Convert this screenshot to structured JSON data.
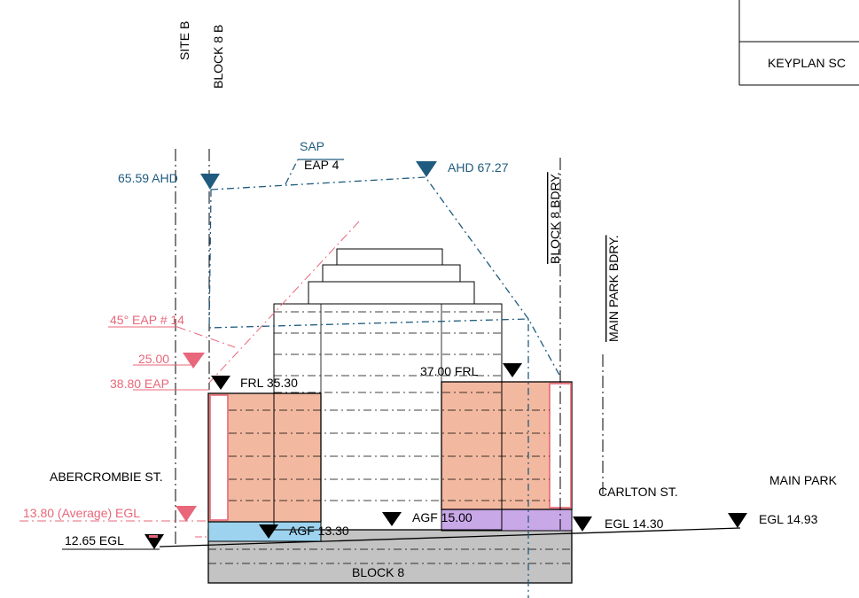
{
  "colors": {
    "ink": "#000000",
    "pink": "#e8677a",
    "dark_blue": "#1f5b7f",
    "orange_fill": "#f3b9a0",
    "blue_fill": "#9dd3ef",
    "purple_fill": "#c9a8e8",
    "grey_fill": "#c3c3c3"
  },
  "keyplan": {
    "label": "KEYPLAN SC"
  },
  "labels": {
    "site_b": "SITE B",
    "block_8_top": "BLOCK 8 B",
    "block_8_bdry": "BLOCK 8 BDRY.",
    "main_park_bdry": "MAIN PARK BDRY.",
    "abercrombie": "ABERCROMBIE ST.",
    "carlton": "CARLTON ST.",
    "main_park": "MAIN PARK",
    "block_8": "BLOCK 8"
  },
  "levels": {
    "ahd_left": "65.59 AHD",
    "ahd_right": "AHD 67.27",
    "sap": "SAP",
    "eap4": "EAP 4",
    "eap14": "45° EAP # 14",
    "eap_25": "25.00",
    "eap_38": "38.80 EAP",
    "frl_left": "FRL 35.30",
    "frl_right": "37.00 FRL",
    "avg_egl": "13.80 (Average) EGL",
    "egl_left": "12.65 EGL",
    "agf_left": "AGF 13.30",
    "agf_right": "AGF 15.00",
    "egl_1430": "EGL 14.30",
    "egl_1493": "EGL 14.93"
  }
}
